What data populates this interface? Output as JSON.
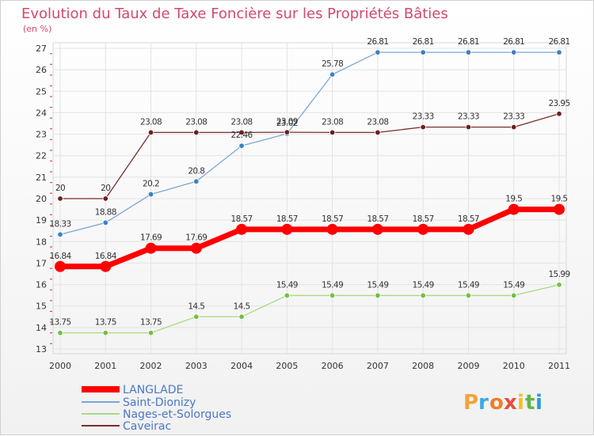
{
  "chart_data": {
    "type": "line",
    "title": "Evolution du Taux de Taxe Foncière sur les Propriétés Bâties",
    "subtitle": "(en %)",
    "x": [
      "2000",
      "2001",
      "2002",
      "2003",
      "2004",
      "2005",
      "2006",
      "2007",
      "2008",
      "2009",
      "2010",
      "2011"
    ],
    "ylim": [
      13,
      27
    ],
    "yticks": [
      13,
      14,
      15,
      16,
      17,
      18,
      19,
      20,
      21,
      22,
      23,
      24,
      25,
      26,
      27
    ],
    "grid": true,
    "legend_position": "bottom-left",
    "series": [
      {
        "name": "LANGLADE",
        "color": "#ff0000",
        "values": [
          16.84,
          16.84,
          17.69,
          17.69,
          18.57,
          18.57,
          18.57,
          18.57,
          18.57,
          18.57,
          19.5,
          19.5
        ],
        "labels": [
          "16.84",
          "16.84",
          "17.69",
          "17.69",
          "18.57",
          "18.57",
          "18.57",
          "18.57",
          "18.57",
          "18.57",
          "19.5",
          "19.5"
        ]
      },
      {
        "name": "Saint-Dionizy",
        "color": "#7aa7d6",
        "marker": "#3b82c4",
        "values": [
          18.33,
          18.88,
          20.2,
          20.8,
          22.46,
          23.02,
          25.78,
          26.81,
          26.81,
          26.81,
          26.81,
          26.81
        ],
        "labels": [
          "18.33",
          "18.88",
          "20.2",
          "20.8",
          "22.46",
          "23.02",
          "25.78",
          "26.81",
          "26.81",
          "26.81",
          "26.81",
          "26.81"
        ]
      },
      {
        "name": "Nages-et-Solorgues",
        "color": "#a6dc82",
        "marker": "#74c043",
        "values": [
          13.75,
          13.75,
          13.75,
          14.5,
          14.5,
          15.49,
          15.49,
          15.49,
          15.49,
          15.49,
          15.49,
          15.99
        ],
        "labels": [
          "13.75",
          "13.75",
          "13.75",
          "14.5",
          "14.5",
          "15.49",
          "15.49",
          "15.49",
          "15.49",
          "15.49",
          "15.49",
          "15.99"
        ]
      },
      {
        "name": "Caveirac",
        "color": "#7a2e2e",
        "marker": "#6b2020",
        "values": [
          20,
          20,
          23.08,
          23.08,
          23.08,
          23.09,
          23.08,
          23.08,
          23.33,
          23.33,
          23.33,
          23.95
        ],
        "labels": [
          "20",
          "20",
          "23.08",
          "23.08",
          "23.08",
          "23.09",
          "23.08",
          "23.08",
          "23.33",
          "23.33",
          "23.33",
          "23.95"
        ]
      }
    ]
  },
  "logo": {
    "letters": [
      "P",
      "r",
      "o",
      "x",
      "i",
      "t",
      "i"
    ],
    "colors": [
      "#f2a33a",
      "#3fa9e0",
      "#f07d2a",
      "#e84c3d",
      "#f5c027",
      "#62b647",
      "#2d9ad4"
    ]
  }
}
